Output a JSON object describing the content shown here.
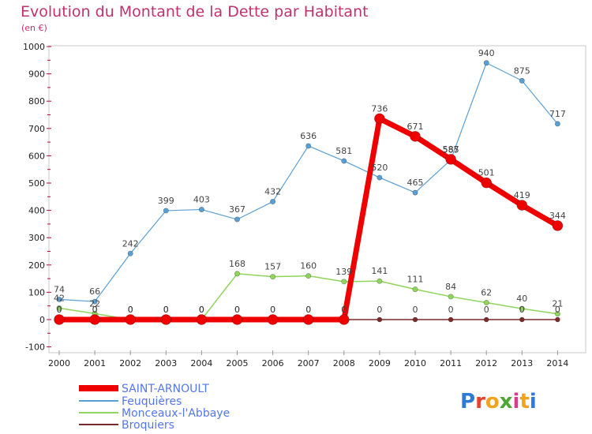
{
  "header": {
    "title": "Evolution du Montant de la Dette par Habitant",
    "subtitle": "(en €)"
  },
  "logo": {
    "text": "Proxiti"
  },
  "colors": {
    "title": "#c0326e",
    "legend_text": "#5577ee",
    "background": "#ffffff",
    "plot_border": "#c8c8c8"
  },
  "chart_data": {
    "type": "line",
    "title": "Evolution du Montant de la Dette par Habitant",
    "subtitle": "(en €)",
    "x": [
      "2000",
      "2001",
      "2002",
      "2003",
      "2004",
      "2005",
      "2006",
      "2007",
      "2008",
      "2009",
      "2010",
      "2011",
      "2012",
      "2013",
      "2014"
    ],
    "ylim": [
      -100,
      1000
    ],
    "yticks": [
      -100,
      0,
      100,
      200,
      300,
      400,
      500,
      600,
      700,
      800,
      900,
      1000
    ],
    "grid": false,
    "legend_position": "bottom-left",
    "series": [
      {
        "name": "Broquiers",
        "color": "#7a2a2a",
        "values": [
          0,
          0,
          0,
          0,
          0,
          0,
          0,
          0,
          0,
          0,
          0,
          0,
          0,
          0,
          0
        ],
        "labels": [
          "0",
          "0",
          "0",
          "0",
          "0",
          "0",
          "0",
          "0",
          "0",
          "0",
          "0",
          "0",
          "0",
          "0",
          "0"
        ]
      },
      {
        "name": "Monceaux-l'Abbaye",
        "color": "#8fd45c",
        "values": [
          42,
          22,
          0,
          0,
          0,
          168,
          157,
          160,
          139,
          141,
          111,
          84,
          62,
          40,
          21
        ],
        "labels": [
          "42",
          "22",
          "0",
          "0",
          "0",
          "168",
          "157",
          "160",
          "139",
          "141",
          "111",
          "84",
          "62",
          "40",
          "21"
        ]
      },
      {
        "name": "Feuquières",
        "color": "#5a9fd4",
        "values": [
          74,
          66,
          242,
          399,
          403,
          367,
          432,
          636,
          581,
          520,
          465,
          585,
          940,
          875,
          717
        ],
        "labels": [
          "74",
          "66",
          "242",
          "399",
          "403",
          "367",
          "432",
          "636",
          "581",
          "520",
          "465",
          "585",
          "940",
          "875",
          "717"
        ]
      },
      {
        "name": "SAINT-ARNOULT",
        "color": "#ee0000",
        "values": [
          0,
          0,
          0,
          0,
          0,
          0,
          0,
          0,
          0,
          736,
          671,
          587,
          501,
          419,
          344
        ],
        "labels": [
          "0",
          "0",
          "0",
          "0",
          "0",
          "0",
          "0",
          "0",
          "0",
          "736",
          "671",
          "587",
          "501",
          "419",
          "344"
        ]
      }
    ],
    "legend_order": [
      "SAINT-ARNOULT",
      "Feuquières",
      "Monceaux-l'Abbaye",
      "Broquiers"
    ]
  }
}
